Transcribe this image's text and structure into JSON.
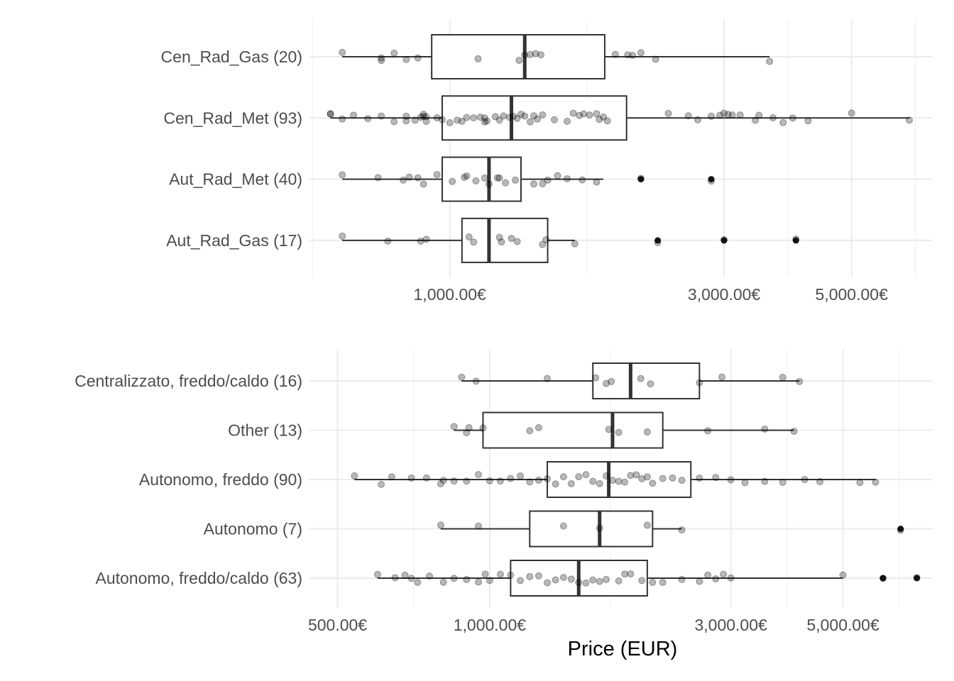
{
  "chart_data": [
    {
      "type": "boxplot",
      "xscale": "log",
      "xlim": [
        570,
        6900
      ],
      "xticks": [
        1000,
        3000,
        5000
      ],
      "xtick_labels": [
        "1,000.00€",
        "3,000.00€",
        "5,000.00€"
      ],
      "xlabel": "",
      "categories": [
        "Cen_Rad_Gas (20)",
        "Cen_Rad_Met (93)",
        "Aut_Rad_Met (40)",
        "Aut_Rad_Gas (17)"
      ],
      "boxes": [
        {
          "min": 650,
          "q1": 930,
          "median": 1350,
          "q3": 1860,
          "max": 3600,
          "outliers": []
        },
        {
          "min": 620,
          "q1": 970,
          "median": 1280,
          "q3": 2030,
          "max": 6300,
          "outliers": []
        },
        {
          "min": 650,
          "q1": 970,
          "median": 1170,
          "q3": 1330,
          "max": 1850,
          "outliers": [
            2150,
            2850
          ]
        },
        {
          "min": 650,
          "q1": 1050,
          "median": 1170,
          "q3": 1480,
          "max": 1650,
          "outliers": [
            2300,
            3000,
            4000
          ]
        }
      ],
      "points": [
        [
          650,
          760,
          760,
          800,
          840,
          880,
          1120,
          1320,
          1350,
          1380,
          1410,
          1440,
          1940,
          2040,
          2080,
          2150,
          2280,
          3600
        ],
        [
          620,
          620,
          650,
          680,
          720,
          760,
          800,
          840,
          840,
          870,
          890,
          900,
          900,
          910,
          910,
          950,
          970,
          1000,
          1030,
          1050,
          1070,
          1100,
          1130,
          1150,
          1150,
          1160,
          1200,
          1220,
          1240,
          1270,
          1290,
          1310,
          1330,
          1350,
          1380,
          1400,
          1420,
          1450,
          1520,
          1600,
          1640,
          1680,
          1710,
          1750,
          1800,
          1820,
          1850,
          1880,
          2400,
          2600,
          2700,
          2850,
          2950,
          3000,
          3050,
          3100,
          3200,
          3400,
          3450,
          3650,
          3800,
          3950,
          4200,
          5000,
          6300
        ],
        [
          650,
          750,
          830,
          850,
          880,
          900,
          950,
          1010,
          1060,
          1070,
          1110,
          1150,
          1170,
          1210,
          1220,
          1250,
          1300,
          1400,
          1450,
          1480,
          1540,
          1600,
          1700,
          1800
        ],
        [
          650,
          780,
          890,
          910,
          1080,
          1100,
          1220,
          1230,
          1280,
          1310,
          1450,
          1470,
          1650
        ]
      ]
    },
    {
      "type": "boxplot",
      "xscale": "log",
      "xlim": [
        440,
        7500
      ],
      "xticks": [
        500,
        1000,
        3000,
        5000
      ],
      "xtick_labels": [
        "500.00€",
        "1,000.00€",
        "3,000.00€",
        "5,000.00€"
      ],
      "xlabel": "Price (EUR)",
      "categories": [
        "Centralizzato, freddo/caldo (16)",
        "Other (13)",
        "Autonomo, freddo (90)",
        "Autonomo (7)",
        "Autonomo, freddo/caldo (63)"
      ],
      "boxes": [
        {
          "min": 880,
          "q1": 1600,
          "median": 1900,
          "q3": 2600,
          "max": 4100,
          "outliers": []
        },
        {
          "min": 850,
          "q1": 970,
          "median": 1750,
          "q3": 2200,
          "max": 4000,
          "outliers": []
        },
        {
          "min": 540,
          "q1": 1300,
          "median": 1720,
          "q3": 2500,
          "max": 5800,
          "outliers": []
        },
        {
          "min": 800,
          "q1": 1200,
          "median": 1650,
          "q3": 2100,
          "max": 2400,
          "outliers": [
            6500
          ]
        },
        {
          "min": 600,
          "q1": 1100,
          "median": 1500,
          "q3": 2050,
          "max": 5000,
          "outliers": [
            6000,
            7000
          ]
        }
      ],
      "points": [
        [
          880,
          940,
          1300,
          1620,
          1700,
          1740,
          1990,
          2080,
          2600,
          2880,
          3800,
          4100
        ],
        [
          850,
          900,
          910,
          970,
          1200,
          1250,
          1720,
          1800,
          2050,
          2700,
          3500,
          4000
        ],
        [
          540,
          610,
          640,
          700,
          750,
          800,
          810,
          850,
          900,
          950,
          1000,
          1050,
          1100,
          1150,
          1200,
          1250,
          1300,
          1350,
          1400,
          1450,
          1500,
          1550,
          1600,
          1650,
          1700,
          1750,
          1800,
          1850,
          1900,
          1950,
          2000,
          2050,
          2100,
          2200,
          2300,
          2400,
          2600,
          2800,
          3000,
          3200,
          3500,
          3800,
          4200,
          4500,
          5400,
          5800
        ],
        [
          800,
          950,
          1400,
          1650,
          2050,
          2400
        ],
        [
          600,
          650,
          680,
          700,
          720,
          760,
          810,
          850,
          900,
          950,
          980,
          1000,
          1050,
          1100,
          1150,
          1200,
          1250,
          1300,
          1350,
          1400,
          1450,
          1500,
          1550,
          1600,
          1650,
          1700,
          1800,
          1850,
          1900,
          2000,
          2100,
          2200,
          2400,
          2600,
          2700,
          2800,
          2900,
          3000,
          5000
        ]
      ]
    }
  ]
}
